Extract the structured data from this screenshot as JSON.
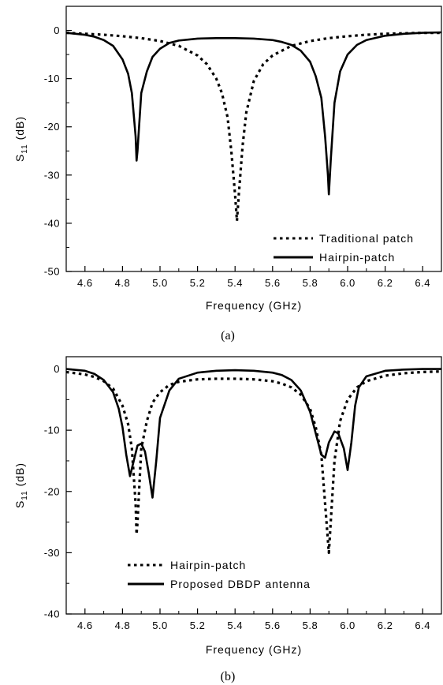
{
  "chart_data": [
    {
      "type": "line",
      "caption": "(a)",
      "xlabel": "Frequency (GHz)",
      "ylabel_main": "S",
      "ylabel_sub": "11",
      "ylabel_unit": " (dB)",
      "xlim": [
        4.5,
        6.5
      ],
      "ylim": [
        -50,
        5
      ],
      "xticks": [
        4.6,
        4.8,
        5.0,
        5.2,
        5.4,
        5.6,
        5.8,
        6.0,
        6.2,
        6.4
      ],
      "xtick_labels": [
        "4.6",
        "4.8",
        "5.0",
        "5.2",
        "5.4",
        "5.6",
        "5.8",
        "6.0",
        "6.2",
        "6.4"
      ],
      "yticks": [
        0,
        -10,
        -20,
        -30,
        -40,
        -50
      ],
      "ytick_labels": [
        "0",
        "-10",
        "-20",
        "-30",
        "-40",
        "-50"
      ],
      "grid": false,
      "legend_position": "bottom-right",
      "series": [
        {
          "name": "Traditional patch",
          "style": "dotted",
          "x": [
            4.5,
            4.6,
            4.7,
            4.8,
            4.9,
            5.0,
            5.1,
            5.2,
            5.25,
            5.3,
            5.33,
            5.36,
            5.38,
            5.4,
            5.41,
            5.42,
            5.44,
            5.46,
            5.5,
            5.55,
            5.6,
            5.7,
            5.8,
            5.9,
            6.0,
            6.1,
            6.2,
            6.3,
            6.4,
            6.5
          ],
          "y": [
            -0.5,
            -0.7,
            -0.9,
            -1.2,
            -1.6,
            -2.2,
            -3.2,
            -5.2,
            -7.0,
            -10.0,
            -13.0,
            -18.0,
            -25.0,
            -34.0,
            -39.5,
            -34.0,
            -24.0,
            -17.0,
            -10.5,
            -7.0,
            -5.2,
            -3.2,
            -2.2,
            -1.6,
            -1.2,
            -0.9,
            -0.7,
            -0.6,
            -0.5,
            -0.5
          ]
        },
        {
          "name": "Hairpin-patch",
          "style": "solid",
          "x": [
            4.5,
            4.6,
            4.65,
            4.7,
            4.75,
            4.8,
            4.83,
            4.85,
            4.87,
            4.875,
            4.88,
            4.9,
            4.93,
            4.96,
            5.0,
            5.05,
            5.1,
            5.2,
            5.3,
            5.4,
            5.5,
            5.6,
            5.65,
            5.7,
            5.75,
            5.8,
            5.83,
            5.86,
            5.88,
            5.895,
            5.9,
            5.91,
            5.93,
            5.96,
            6.0,
            6.05,
            6.1,
            6.2,
            6.3,
            6.4,
            6.5
          ],
          "y": [
            -0.5,
            -0.9,
            -1.3,
            -2.0,
            -3.2,
            -6.0,
            -9.0,
            -13.0,
            -22.0,
            -27.0,
            -25.0,
            -13.0,
            -8.5,
            -5.5,
            -3.8,
            -2.6,
            -2.1,
            -1.7,
            -1.6,
            -1.6,
            -1.7,
            -2.0,
            -2.4,
            -3.0,
            -4.2,
            -6.5,
            -9.5,
            -14.0,
            -22.0,
            -30.0,
            -34.0,
            -27.0,
            -15.0,
            -8.5,
            -5.0,
            -3.0,
            -2.0,
            -1.1,
            -0.7,
            -0.5,
            -0.4
          ]
        }
      ]
    },
    {
      "type": "line",
      "caption": "(b)",
      "xlabel": "Frequency (GHz)",
      "ylabel_main": "S",
      "ylabel_sub": "11",
      "ylabel_unit": " (dB)",
      "xlim": [
        4.5,
        6.5
      ],
      "ylim": [
        -40,
        2
      ],
      "xticks": [
        4.6,
        4.8,
        5.0,
        5.2,
        5.4,
        5.6,
        5.8,
        6.0,
        6.2,
        6.4
      ],
      "xtick_labels": [
        "4.6",
        "4.8",
        "5.0",
        "5.2",
        "5.4",
        "5.6",
        "5.8",
        "6.0",
        "6.2",
        "6.4"
      ],
      "yticks": [
        0,
        -10,
        -20,
        -30,
        -40
      ],
      "ytick_labels": [
        "0",
        "-10",
        "-20",
        "-30",
        "-40"
      ],
      "grid": false,
      "legend_position": "bottom-left",
      "series": [
        {
          "name": "Hairpin-patch",
          "style": "dotted",
          "x": [
            4.5,
            4.6,
            4.65,
            4.7,
            4.75,
            4.8,
            4.83,
            4.85,
            4.87,
            4.875,
            4.88,
            4.9,
            4.93,
            4.96,
            5.0,
            5.05,
            5.1,
            5.2,
            5.3,
            5.4,
            5.5,
            5.6,
            5.65,
            5.7,
            5.75,
            5.8,
            5.83,
            5.86,
            5.88,
            5.895,
            5.9,
            5.91,
            5.93,
            5.96,
            6.0,
            6.05,
            6.1,
            6.2,
            6.3,
            6.4,
            6.5
          ],
          "y": [
            -0.5,
            -0.9,
            -1.3,
            -2.0,
            -3.2,
            -6.0,
            -9.0,
            -13.0,
            -22.0,
            -27.0,
            -25.0,
            -13.0,
            -8.5,
            -5.5,
            -3.8,
            -2.6,
            -2.1,
            -1.7,
            -1.6,
            -1.6,
            -1.7,
            -2.0,
            -2.4,
            -3.0,
            -4.2,
            -6.5,
            -9.5,
            -14.0,
            -22.0,
            -28.0,
            -30.0,
            -25.0,
            -15.0,
            -8.5,
            -5.0,
            -3.0,
            -2.0,
            -1.1,
            -0.7,
            -0.5,
            -0.4
          ]
        },
        {
          "name": "Proposed DBDP antenna",
          "style": "solid",
          "x": [
            4.5,
            4.6,
            4.65,
            4.7,
            4.75,
            4.78,
            4.8,
            4.82,
            4.84,
            4.86,
            4.88,
            4.9,
            4.92,
            4.94,
            4.96,
            4.98,
            5.0,
            5.05,
            5.1,
            5.2,
            5.3,
            5.4,
            5.5,
            5.6,
            5.65,
            5.7,
            5.75,
            5.8,
            5.83,
            5.86,
            5.88,
            5.9,
            5.93,
            5.95,
            5.98,
            6.0,
            6.02,
            6.04,
            6.06,
            6.1,
            6.2,
            6.3,
            6.4,
            6.5
          ],
          "y": [
            0.0,
            -0.3,
            -0.8,
            -1.8,
            -3.8,
            -6.5,
            -9.5,
            -14.0,
            -17.5,
            -15.0,
            -12.5,
            -12.2,
            -13.5,
            -17.0,
            -21.0,
            -15.0,
            -8.0,
            -3.5,
            -1.6,
            -0.6,
            -0.3,
            -0.2,
            -0.3,
            -0.6,
            -1.0,
            -1.8,
            -3.5,
            -7.0,
            -10.5,
            -14.0,
            -14.5,
            -12.0,
            -10.2,
            -10.5,
            -13.0,
            -16.5,
            -12.0,
            -6.0,
            -3.0,
            -1.2,
            -0.3,
            -0.1,
            0.0,
            0.0
          ]
        }
      ]
    }
  ]
}
